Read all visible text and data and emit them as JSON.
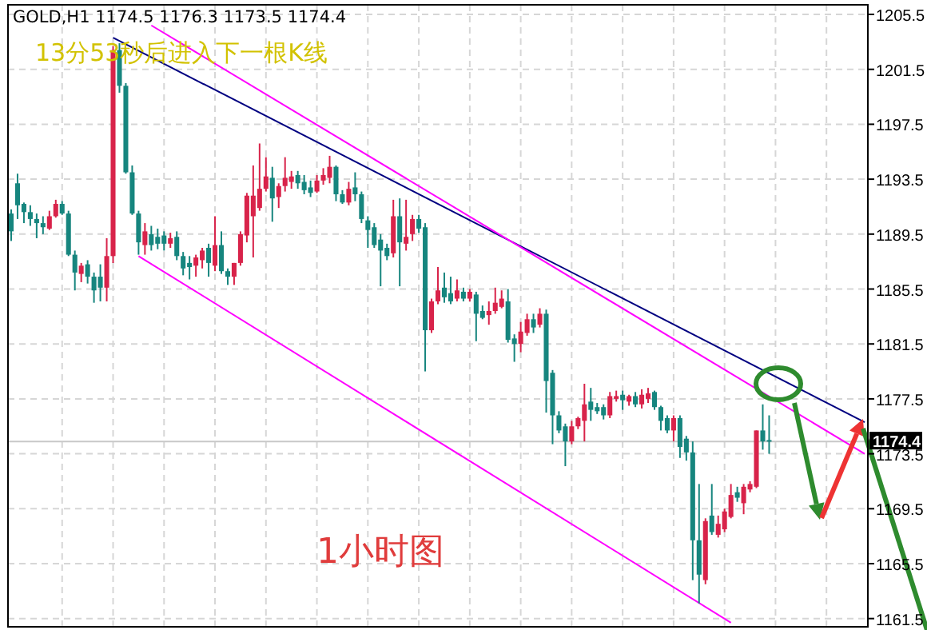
{
  "chart_data": {
    "type": "candlestick",
    "title": "GOLD,H1  1174.5 1176.3 1173.5 1174.4",
    "annotations": [
      "13分53秒后进入下一根K线",
      "1小时图"
    ],
    "categories": [
      null,
      null,
      null,
      null,
      null,
      null,
      null,
      null,
      null,
      null,
      null,
      null,
      null,
      null,
      null,
      null,
      null,
      null,
      null,
      null,
      null,
      null,
      null,
      null,
      null,
      null,
      null,
      null,
      null,
      null,
      null,
      null,
      null,
      null,
      null,
      null,
      null,
      null,
      null,
      null,
      null,
      null,
      null,
      null,
      null,
      null,
      null,
      null,
      null,
      null,
      null,
      null,
      null,
      null,
      null,
      null,
      null,
      null,
      null,
      null,
      null,
      null,
      null,
      null,
      null,
      null,
      null,
      null,
      null,
      null,
      null,
      null,
      null,
      null,
      null,
      null,
      null,
      null,
      null,
      null,
      null,
      null,
      null,
      null,
      null,
      null,
      null,
      null,
      null,
      null,
      null,
      null,
      null,
      null,
      null,
      null,
      null,
      null,
      null,
      null,
      null,
      null,
      null,
      null,
      null,
      null,
      null,
      null,
      null,
      null,
      null,
      null,
      null,
      null,
      null,
      null,
      null,
      null,
      null,
      null,
      null,
      null,
      null,
      null,
      null,
      null,
      null,
      null,
      null,
      null,
      null,
      null,
      null,
      null,
      null
    ],
    "ohlc": [
      [
        1191.0,
        1191.3,
        1189.0,
        1189.7
      ],
      [
        1193.2,
        1193.9,
        1190.6,
        1191.6
      ],
      [
        1191.7,
        1191.8,
        1190.3,
        1191.1
      ],
      [
        1191.1,
        1191.6,
        1190.1,
        1190.6
      ],
      [
        1190.6,
        1191.0,
        1189.2,
        1190.3
      ],
      [
        1190.3,
        1190.8,
        1189.5,
        1190.0
      ],
      [
        1189.9,
        1191.2,
        1189.8,
        1190.8
      ],
      [
        1190.8,
        1192.0,
        1190.7,
        1191.7
      ],
      [
        1191.7,
        1191.9,
        1190.9,
        1191.0
      ],
      [
        1191.0,
        1191.2,
        1187.9,
        1188.0
      ],
      [
        1188.0,
        1188.3,
        1185.4,
        1186.7
      ],
      [
        1186.6,
        1187.4,
        1186.0,
        1187.2
      ],
      [
        1187.3,
        1187.6,
        1185.9,
        1186.4
      ],
      [
        1186.4,
        1186.7,
        1184.5,
        1185.4
      ],
      [
        1186.4,
        1187.3,
        1184.6,
        1185.6
      ],
      [
        1185.6,
        1189.2,
        1184.6,
        1187.9
      ],
      [
        1187.9,
        1203.2,
        1187.4,
        1202.9
      ],
      [
        1202.9,
        1203.4,
        1199.8,
        1200.3
      ],
      [
        1200.3,
        1200.5,
        1193.9,
        1194.0
      ],
      [
        1194.0,
        1194.5,
        1190.9,
        1191.0
      ],
      [
        1191.0,
        1191.2,
        1188.0,
        1188.9
      ],
      [
        1188.7,
        1190.3,
        1188.0,
        1189.7
      ],
      [
        1189.5,
        1190.1,
        1188.3,
        1188.7
      ],
      [
        1189.3,
        1189.9,
        1188.4,
        1188.8
      ],
      [
        1189.4,
        1189.7,
        1188.3,
        1188.8
      ],
      [
        1188.8,
        1189.6,
        1188.5,
        1189.2
      ],
      [
        1189.3,
        1189.7,
        1187.6,
        1187.9
      ],
      [
        1187.9,
        1188.2,
        1186.5,
        1187.0
      ],
      [
        1187.4,
        1187.9,
        1186.2,
        1187.1
      ],
      [
        1187.2,
        1188.0,
        1186.4,
        1187.8
      ],
      [
        1187.6,
        1188.5,
        1187.0,
        1188.3
      ],
      [
        1188.5,
        1188.8,
        1186.4,
        1187.4
      ],
      [
        1187.2,
        1190.8,
        1186.8,
        1188.7
      ],
      [
        1188.7,
        1189.7,
        1186.6,
        1186.8
      ],
      [
        1186.8,
        1187.0,
        1185.8,
        1186.4
      ],
      [
        1186.4,
        1187.4,
        1185.8,
        1187.4
      ],
      [
        1187.4,
        1189.7,
        1187.2,
        1189.5
      ],
      [
        1189.4,
        1192.5,
        1188.9,
        1192.3
      ],
      [
        1190.8,
        1194.5,
        1187.8,
        1192.3
      ],
      [
        1191.4,
        1196.1,
        1191.2,
        1192.8
      ],
      [
        1192.8,
        1195.1,
        1192.6,
        1193.7
      ],
      [
        1193.6,
        1194.4,
        1190.4,
        1192.1
      ],
      [
        1192.2,
        1193.2,
        1191.4,
        1193.0
      ],
      [
        1193.0,
        1195.1,
        1192.6,
        1193.6
      ],
      [
        1193.3,
        1194.1,
        1192.8,
        1193.7
      ],
      [
        1193.8,
        1194.1,
        1192.8,
        1193.2
      ],
      [
        1193.3,
        1193.8,
        1192.4,
        1192.7
      ],
      [
        1192.9,
        1193.4,
        1192.2,
        1192.5
      ],
      [
        1192.6,
        1193.8,
        1192.5,
        1193.4
      ],
      [
        1193.4,
        1194.3,
        1193.1,
        1193.8
      ],
      [
        1193.6,
        1195.2,
        1193.2,
        1194.4
      ],
      [
        1194.4,
        1194.5,
        1191.9,
        1192.4
      ],
      [
        1192.4,
        1192.7,
        1191.7,
        1191.8
      ],
      [
        1191.8,
        1193.3,
        1191.6,
        1192.8
      ],
      [
        1192.9,
        1194.0,
        1191.9,
        1192.4
      ],
      [
        1192.4,
        1192.6,
        1190.3,
        1190.6
      ],
      [
        1190.5,
        1190.8,
        1188.5,
        1189.8
      ],
      [
        1190.0,
        1190.3,
        1188.5,
        1188.7
      ],
      [
        1189.1,
        1189.5,
        1185.7,
        1188.3
      ],
      [
        1188.5,
        1188.8,
        1187.6,
        1187.9
      ],
      [
        1188.1,
        1192.0,
        1187.8,
        1190.8
      ],
      [
        1190.8,
        1192.1,
        1185.7,
        1188.9
      ],
      [
        1188.8,
        1192.0,
        1188.3,
        1189.3
      ],
      [
        1189.5,
        1190.9,
        1189.0,
        1190.6
      ],
      [
        1190.6,
        1190.9,
        1189.6,
        1189.9
      ],
      [
        1190.0,
        1190.3,
        1179.5,
        1182.5
      ],
      [
        1182.5,
        1184.8,
        1182.3,
        1184.6
      ],
      [
        1184.6,
        1187.1,
        1184.4,
        1185.4
      ],
      [
        1185.6,
        1186.7,
        1184.5,
        1184.9
      ],
      [
        1185.2,
        1186.4,
        1184.4,
        1184.6
      ],
      [
        1184.8,
        1186.2,
        1184.6,
        1185.4
      ],
      [
        1185.3,
        1185.6,
        1184.6,
        1184.8
      ],
      [
        1184.8,
        1185.5,
        1184.6,
        1185.3
      ],
      [
        1185.1,
        1185.3,
        1181.7,
        1183.7
      ],
      [
        1183.9,
        1184.3,
        1183.3,
        1183.4
      ],
      [
        1183.6,
        1184.6,
        1182.9,
        1183.9
      ],
      [
        1183.9,
        1185.6,
        1183.7,
        1184.5
      ],
      [
        1184.2,
        1185.4,
        1184.1,
        1184.8
      ],
      [
        1184.6,
        1185.5,
        1181.6,
        1181.8
      ],
      [
        1181.9,
        1182.2,
        1180.2,
        1181.5
      ],
      [
        1181.5,
        1183.1,
        1180.9,
        1182.4
      ],
      [
        1182.3,
        1183.7,
        1182.1,
        1183.3
      ],
      [
        1183.3,
        1183.7,
        1182.3,
        1182.7
      ],
      [
        1182.9,
        1184.1,
        1182.7,
        1183.7
      ],
      [
        1183.7,
        1184.0,
        1176.5,
        1178.8
      ],
      [
        1179.4,
        1179.6,
        1174.2,
        1176.3
      ],
      [
        1176.3,
        1176.6,
        1175.0,
        1175.2
      ],
      [
        1175.5,
        1175.7,
        1172.6,
        1174.4
      ],
      [
        1174.4,
        1175.9,
        1174.2,
        1175.5
      ],
      [
        1175.5,
        1176.2,
        1175.3,
        1176.1
      ],
      [
        1175.9,
        1178.6,
        1174.4,
        1177.1
      ],
      [
        1177.3,
        1178.3,
        1175.9,
        1176.7
      ],
      [
        1176.9,
        1177.2,
        1176.4,
        1176.6
      ],
      [
        1176.9,
        1177.1,
        1176.0,
        1176.3
      ],
      [
        1176.3,
        1178.0,
        1176.1,
        1177.7
      ],
      [
        1177.5,
        1178.1,
        1177.3,
        1177.7
      ],
      [
        1177.8,
        1178.1,
        1176.7,
        1177.4
      ],
      [
        1177.3,
        1177.8,
        1177.0,
        1177.7
      ],
      [
        1177.7,
        1178.0,
        1176.9,
        1177.1
      ],
      [
        1177.1,
        1178.2,
        1176.8,
        1177.8
      ],
      [
        1177.5,
        1178.3,
        1177.2,
        1177.9
      ],
      [
        1178.0,
        1178.1,
        1176.7,
        1176.9
      ],
      [
        1176.9,
        1177.0,
        1175.2,
        1175.9
      ],
      [
        1176.1,
        1176.3,
        1175.0,
        1175.2
      ],
      [
        1175.2,
        1176.3,
        1174.4,
        1176.1
      ],
      [
        1176.1,
        1176.3,
        1173.2,
        1174.0
      ],
      [
        1174.6,
        1174.8,
        1173.0,
        1173.6
      ],
      [
        1173.6,
        1174.4,
        1164.3,
        1167.2
      ],
      [
        1167.2,
        1171.3,
        1162.6,
        1164.7
      ],
      [
        1164.3,
        1168.8,
        1164.0,
        1168.6
      ],
      [
        1169.0,
        1171.3,
        1167.6,
        1167.8
      ],
      [
        1167.6,
        1169.0,
        1167.4,
        1168.4
      ],
      [
        1168.0,
        1169.5,
        1167.8,
        1169.3
      ],
      [
        1168.9,
        1171.3,
        1168.8,
        1170.5
      ],
      [
        1170.7,
        1171.1,
        1170.0,
        1170.3
      ],
      [
        1169.9,
        1171.3,
        1169.1,
        1171.1
      ],
      [
        1170.9,
        1171.5,
        1170.7,
        1171.3
      ],
      [
        1171.1,
        1175.2,
        1171.0,
        1175.2
      ],
      [
        1175.2,
        1177.1,
        1173.8,
        1174.4
      ],
      [
        1174.5,
        1176.3,
        1173.5,
        1174.4
      ],
      null,
      null,
      null,
      null,
      null,
      null,
      null,
      null,
      null,
      null,
      null,
      null,
      null,
      null,
      null
    ],
    "colors": [
      "#16857e",
      "#16857e",
      "#16857e",
      "#16857e",
      "#16857e",
      "#16857e",
      "#d8234a",
      "#d8234a",
      "#16857e",
      "#16857e",
      "#16857e",
      "#d8234a",
      "#16857e",
      "#16857e",
      "#16857e",
      "#d8234a",
      "#d8234a",
      "#16857e",
      "#16857e",
      "#16857e",
      "#16857e",
      "#d8234a",
      "#16857e",
      "#16857e",
      "#16857e",
      "#d8234a",
      "#16857e",
      "#16857e",
      "#16857e",
      "#d8234a",
      "#d8234a",
      "#16857e",
      "#d8234a",
      "#16857e",
      "#16857e",
      "#d8234a",
      "#d8234a",
      "#d8234a",
      "#d8234a",
      "#d8234a",
      "#d8234a",
      "#16857e",
      "#d8234a",
      "#d8234a",
      "#d8234a",
      "#16857e",
      "#16857e",
      "#16857e",
      "#d8234a",
      "#d8234a",
      "#d8234a",
      "#16857e",
      "#16857e",
      "#d8234a",
      "#16857e",
      "#16857e",
      "#16857e",
      "#16857e",
      "#16857e",
      "#16857e",
      "#d8234a",
      "#16857e",
      "#d8234a",
      "#d8234a",
      "#16857e",
      "#16857e",
      "#d8234a",
      "#d8234a",
      "#16857e",
      "#16857e",
      "#d8234a",
      "#16857e",
      "#d8234a",
      "#16857e",
      "#16857e",
      "#d8234a",
      "#d8234a",
      "#d8234a",
      "#16857e",
      "#16857e",
      "#d8234a",
      "#d8234a",
      "#16857e",
      "#d8234a",
      "#16857e",
      "#16857e",
      "#16857e",
      "#16857e",
      "#d8234a",
      "#d8234a",
      "#d8234a",
      "#16857e",
      "#16857e",
      "#16857e",
      "#d8234a",
      "#d8234a",
      "#16857e",
      "#d8234a",
      "#16857e",
      "#d8234a",
      "#d8234a",
      "#16857e",
      "#16857e",
      "#16857e",
      "#d8234a",
      "#16857e",
      "#16857e",
      "#16857e",
      "#16857e",
      "#d8234a",
      "#16857e",
      "#d8234a",
      "#d8234a",
      "#d8234a",
      "#16857e",
      "#d8234a",
      "#d8234a",
      "#d8234a",
      "#16857e",
      "#16857e",
      null,
      null,
      null,
      null,
      null,
      null,
      null,
      null,
      null,
      null,
      null,
      null,
      null,
      null,
      null
    ],
    "series": [
      {
        "type": "line",
        "color": "#000080",
        "values": [
          null,
          null,
          null,
          null,
          null,
          null,
          null,
          null,
          null,
          null,
          null,
          null,
          null,
          null,
          null,
          null,
          1203.8,
          null,
          null,
          null,
          null,
          null,
          null,
          null,
          null,
          null,
          null,
          null,
          null,
          null,
          null,
          null,
          null,
          null,
          null,
          null,
          null,
          null,
          null,
          null,
          null,
          null,
          null,
          null,
          null,
          null,
          null,
          null,
          null,
          null,
          null,
          null,
          null,
          null,
          null,
          null,
          null,
          null,
          null,
          null,
          null,
          null,
          null,
          null,
          null,
          null,
          null,
          null,
          null,
          null,
          null,
          null,
          null,
          null,
          null,
          null,
          null,
          null,
          null,
          null,
          null,
          null,
          null,
          null,
          null,
          null,
          null,
          null,
          null,
          null,
          null,
          null,
          null,
          null,
          null,
          null,
          null,
          null,
          null,
          null,
          null,
          null,
          null,
          null,
          null,
          null,
          null,
          null,
          null,
          null,
          null,
          null,
          null,
          null,
          null,
          null,
          null,
          null,
          null,
          null,
          null,
          null,
          null,
          null,
          null,
          null,
          null,
          null,
          null,
          null,
          null,
          null,
          null,
          null,
          1175.8
        ]
      },
      {
        "type": "line",
        "color": "#ff00ff",
        "values": [
          null,
          null,
          null,
          null,
          null,
          null,
          null,
          null,
          null,
          null,
          null,
          null,
          null,
          null,
          null,
          null,
          null,
          null,
          null,
          null,
          null,
          null,
          1204.7,
          null,
          null,
          null,
          null,
          null,
          null,
          null,
          null,
          null,
          null,
          null,
          null,
          null,
          null,
          null,
          null,
          null,
          null,
          null,
          null,
          null,
          null,
          null,
          null,
          null,
          null,
          null,
          null,
          null,
          null,
          null,
          null,
          null,
          null,
          null,
          null,
          null,
          null,
          null,
          null,
          null,
          null,
          null,
          null,
          null,
          null,
          null,
          null,
          null,
          null,
          null,
          null,
          null,
          null,
          null,
          null,
          null,
          null,
          null,
          null,
          null,
          null,
          null,
          null,
          null,
          null,
          null,
          null,
          null,
          null,
          null,
          null,
          null,
          null,
          null,
          null,
          null,
          null,
          null,
          null,
          null,
          null,
          null,
          null,
          null,
          null,
          null,
          null,
          null,
          null,
          null,
          null,
          null,
          null,
          null,
          null,
          null,
          null,
          null,
          null,
          null,
          null,
          null,
          null,
          null,
          null,
          null,
          null,
          null,
          null,
          null,
          1173.5
        ]
      },
      {
        "type": "line",
        "color": "#ff00ff",
        "values": [
          null,
          null,
          null,
          null,
          null,
          null,
          null,
          null,
          null,
          null,
          null,
          null,
          null,
          null,
          null,
          null,
          null,
          null,
          null,
          null,
          1187.9,
          null,
          null,
          null,
          null,
          null,
          null,
          null,
          null,
          null,
          null,
          null,
          null,
          null,
          null,
          null,
          null,
          null,
          null,
          null,
          null,
          null,
          null,
          null,
          null,
          null,
          null,
          null,
          null,
          null,
          null,
          null,
          null,
          null,
          null,
          null,
          null,
          null,
          null,
          null,
          null,
          null,
          null,
          null,
          null,
          null,
          null,
          null,
          null,
          null,
          null,
          null,
          null,
          null,
          null,
          null,
          null,
          null,
          null,
          null,
          null,
          null,
          null,
          null,
          null,
          null,
          null,
          null,
          null,
          null,
          null,
          null,
          null,
          null,
          null,
          null,
          null,
          null,
          null,
          null,
          null,
          null,
          null,
          null,
          null,
          null,
          null,
          null,
          null,
          null,
          null,
          null,
          null,
          1161.2,
          null,
          null,
          null,
          null,
          null,
          null,
          null,
          null,
          null,
          null,
          null,
          null,
          null,
          null,
          null,
          null,
          null,
          null,
          null,
          null,
          null
        ]
      }
    ],
    "ref_lines": [
      {
        "axis": "y",
        "value": 1174.4,
        "label": "1174.4",
        "color": "#c8c8c8"
      }
    ],
    "ylim": [
      1160.9,
      1206.2
    ],
    "yticks": [
      1161.5,
      1165.5,
      1169.5,
      1173.5,
      1177.5,
      1181.5,
      1185.5,
      1189.5,
      1193.5,
      1197.5,
      1201.5,
      1205.5
    ],
    "grid": true,
    "tick_labels": "y"
  }
}
